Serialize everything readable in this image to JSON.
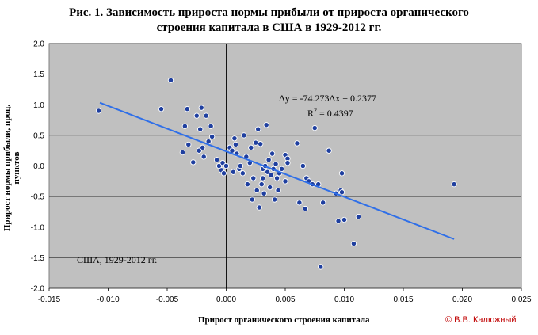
{
  "chart_data": {
    "type": "scatter",
    "title_line1": "Рис. 1. Зависимость прироста нормы прибыли от прироста органического",
    "title_line2": "строения капитала в США в 1929-2012 гг.",
    "xlabel": "Прирост органического строения капитала",
    "ylabel": "Прирост нормы прибыли, проц. пунктов",
    "xlim": [
      -0.015,
      0.025
    ],
    "ylim": [
      -2.0,
      2.0
    ],
    "x_ticks": [
      "-0.015",
      "-0.010",
      "-0.005",
      "0.000",
      "0.005",
      "0.010",
      "0.015",
      "0.020",
      "0.025"
    ],
    "y_ticks": [
      "2.0",
      "1.5",
      "1.0",
      "0.5",
      "0.0",
      "-0.5",
      "-1.0",
      "-1.5",
      "-2.0"
    ],
    "grid": true,
    "background": "#c0c0c0",
    "point_color": "#1f3f9f",
    "trend_color": "#2f6fe8",
    "equation": "Δy = -74.273Δx + 0.2377",
    "r_squared_prefix": "R",
    "r_squared_sup": "2",
    "r_squared_value": " = 0.4397",
    "trendline": {
      "slope": -74.273,
      "intercept": 0.2377,
      "x_from": -0.0107,
      "x_to": 0.0193
    },
    "inner_note": "США, 1929-2012 гг.",
    "copyright": "© В.В. Калюжный",
    "points": [
      [
        -0.0108,
        0.9
      ],
      [
        -0.0055,
        0.93
      ],
      [
        -0.0047,
        1.4
      ],
      [
        -0.0037,
        0.22
      ],
      [
        -0.0035,
        0.65
      ],
      [
        -0.0033,
        0.93
      ],
      [
        -0.0032,
        0.35
      ],
      [
        -0.0028,
        0.06
      ],
      [
        -0.0025,
        0.82
      ],
      [
        -0.0023,
        0.25
      ],
      [
        -0.0022,
        0.6
      ],
      [
        -0.0021,
        0.95
      ],
      [
        -0.002,
        0.3
      ],
      [
        -0.0019,
        0.15
      ],
      [
        -0.0017,
        0.82
      ],
      [
        -0.0015,
        0.4
      ],
      [
        -0.0013,
        0.65
      ],
      [
        -0.0012,
        0.48
      ],
      [
        -0.0008,
        0.1
      ],
      [
        -0.0006,
        0.0
      ],
      [
        -0.0004,
        -0.07
      ],
      [
        -0.0003,
        0.05
      ],
      [
        -0.0002,
        -0.12
      ],
      [
        0.0,
        0.0
      ],
      [
        0.0003,
        0.3
      ],
      [
        0.0005,
        0.25
      ],
      [
        0.0006,
        -0.1
      ],
      [
        0.0007,
        0.45
      ],
      [
        0.0008,
        0.35
      ],
      [
        0.0009,
        0.2
      ],
      [
        0.0011,
        -0.05
      ],
      [
        0.0012,
        0.0
      ],
      [
        0.0014,
        -0.12
      ],
      [
        0.0015,
        0.5
      ],
      [
        0.0017,
        0.15
      ],
      [
        0.0018,
        -0.3
      ],
      [
        0.002,
        0.05
      ],
      [
        0.0021,
        0.3
      ],
      [
        0.0022,
        -0.55
      ],
      [
        0.0023,
        -0.2
      ],
      [
        0.0025,
        0.38
      ],
      [
        0.0026,
        -0.4
      ],
      [
        0.0027,
        0.6
      ],
      [
        0.0028,
        -0.68
      ],
      [
        0.0029,
        0.36
      ],
      [
        0.003,
        -0.3
      ],
      [
        0.0031,
        -0.05
      ],
      [
        0.0031,
        -0.2
      ],
      [
        0.0032,
        -0.45
      ],
      [
        0.0033,
        0.0
      ],
      [
        0.0034,
        0.67
      ],
      [
        0.0035,
        -0.1
      ],
      [
        0.0036,
        0.1
      ],
      [
        0.0037,
        -0.35
      ],
      [
        0.0038,
        -0.15
      ],
      [
        0.0039,
        0.2
      ],
      [
        0.004,
        -0.05
      ],
      [
        0.0041,
        -0.55
      ],
      [
        0.0042,
        0.03
      ],
      [
        0.0043,
        -0.2
      ],
      [
        0.0044,
        -0.4
      ],
      [
        0.0045,
        -0.12
      ],
      [
        0.0047,
        -0.05
      ],
      [
        0.005,
        0.18
      ],
      [
        0.005,
        -0.25
      ],
      [
        0.0052,
        0.12
      ],
      [
        0.0052,
        0.05
      ],
      [
        0.006,
        0.37
      ],
      [
        0.0062,
        -0.6
      ],
      [
        0.0065,
        0.0
      ],
      [
        0.0067,
        -0.7
      ],
      [
        0.0068,
        -0.2
      ],
      [
        0.007,
        -0.25
      ],
      [
        0.0073,
        -0.3
      ],
      [
        0.0075,
        0.62
      ],
      [
        0.0078,
        -0.3
      ],
      [
        0.008,
        -1.65
      ],
      [
        0.0082,
        -0.6
      ],
      [
        0.0087,
        0.25
      ],
      [
        0.0093,
        -0.45
      ],
      [
        0.0095,
        -0.9
      ],
      [
        0.0097,
        -0.4
      ],
      [
        0.0098,
        -0.12
      ],
      [
        0.0098,
        -0.43
      ],
      [
        0.01,
        -0.88
      ],
      [
        0.0108,
        -1.27
      ],
      [
        0.0112,
        -0.83
      ],
      [
        0.0193,
        -0.3
      ]
    ]
  }
}
